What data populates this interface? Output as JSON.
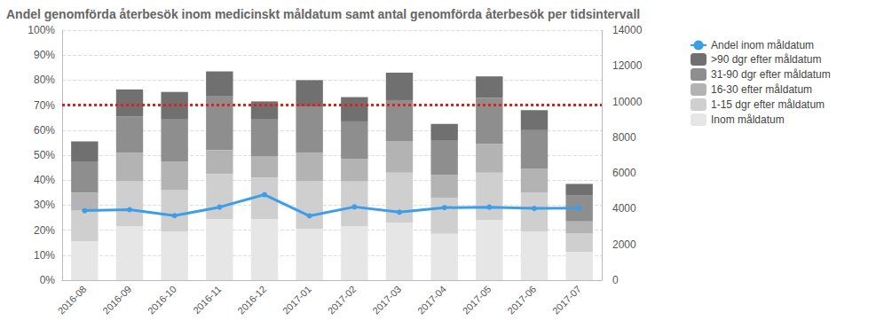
{
  "chart_data": {
    "type": "bar",
    "title": "Andel genomförda återbesök inom medicinskt måldatum samt antal genomförda återbesök per tidsintervall",
    "stacked": true,
    "grid": true,
    "legend": "right",
    "categories": [
      "2016-08",
      "2016-09",
      "2016-10",
      "2016-11",
      "2016-12",
      "2017-01",
      "2017-02",
      "2017-03",
      "2017-04",
      "2017-05",
      "2017-06",
      "2017-07"
    ],
    "ylim": [
      0,
      100
    ],
    "yticks": [
      {
        "value": 0,
        "label": "0%"
      },
      {
        "value": 10,
        "label": "10%"
      },
      {
        "value": 20,
        "label": "20%"
      },
      {
        "value": 30,
        "label": "30%"
      },
      {
        "value": 40,
        "label": "40%"
      },
      {
        "value": 50,
        "label": "50%"
      },
      {
        "value": 60,
        "label": "60%"
      },
      {
        "value": 70,
        "label": "70%"
      },
      {
        "value": 80,
        "label": "80%"
      },
      {
        "value": 90,
        "label": "90%"
      },
      {
        "value": 100,
        "label": "100%"
      }
    ],
    "y2lim": [
      0,
      14000
    ],
    "y2ticks": [
      0,
      2000,
      4000,
      6000,
      8000,
      10000,
      12000,
      14000
    ],
    "reference_lines": [
      {
        "y": 70,
        "color": "#e02020",
        "line_style": "dotted"
      }
    ],
    "series": [
      {
        "name": "Andel inom måldatum",
        "type": "line",
        "color": "#3d9ee8",
        "marker": "circle",
        "values": [
          27.8,
          28.2,
          25.8,
          29.2,
          34.2,
          25.7,
          29.3,
          27.2,
          29.0,
          29.2,
          28.7,
          28.8
        ]
      },
      {
        "name": ">90 dgr efter måldatum",
        "type": "bar",
        "axis": "y2",
        "color": "#707070",
        "values": [
          1120,
          1510,
          1510,
          1400,
          980,
          1470,
          1360,
          1540,
          910,
          1190,
          1120,
          630
        ]
      },
      {
        "name": "31-90 dgr efter måldatum",
        "type": "bar",
        "axis": "y2",
        "color": "#8e8e8e",
        "values": [
          1750,
          2030,
          2380,
          3010,
          2100,
          2590,
          2100,
          2310,
          1960,
          2590,
          2170,
          1470
        ]
      },
      {
        "name": "16-30 efter måldatum",
        "type": "bar",
        "axis": "y2",
        "color": "#b3b3b3",
        "values": [
          980,
          1610,
          1610,
          1330,
          1190,
          1610,
          1260,
          1750,
          1260,
          1610,
          1330,
          660
        ]
      },
      {
        "name": "1-15 dgr efter måldatum",
        "type": "bar",
        "axis": "y2",
        "color": "#cfcfcf",
        "values": [
          1750,
          2520,
          2310,
          2520,
          2310,
          2660,
          2520,
          2800,
          2030,
          2660,
          2170,
          1050
        ]
      },
      {
        "name": "Inom måldatum",
        "type": "bar",
        "axis": "y2",
        "color": "#e6e6e6",
        "values": [
          2170,
          3010,
          2730,
          3430,
          3430,
          2870,
          3010,
          3220,
          2590,
          3360,
          2730,
          1580
        ]
      }
    ]
  }
}
